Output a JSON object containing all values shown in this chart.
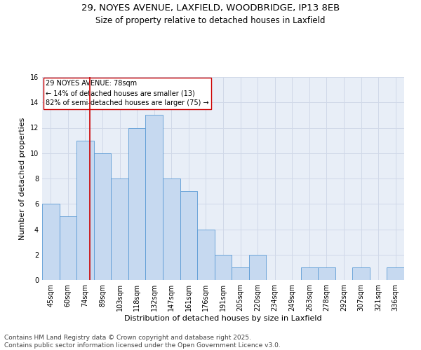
{
  "title1": "29, NOYES AVENUE, LAXFIELD, WOODBRIDGE, IP13 8EB",
  "title2": "Size of property relative to detached houses in Laxfield",
  "xlabel": "Distribution of detached houses by size in Laxfield",
  "ylabel": "Number of detached properties",
  "categories": [
    "45sqm",
    "60sqm",
    "74sqm",
    "89sqm",
    "103sqm",
    "118sqm",
    "132sqm",
    "147sqm",
    "161sqm",
    "176sqm",
    "191sqm",
    "205sqm",
    "220sqm",
    "234sqm",
    "249sqm",
    "263sqm",
    "278sqm",
    "292sqm",
    "307sqm",
    "321sqm",
    "336sqm"
  ],
  "values": [
    6,
    5,
    11,
    10,
    8,
    12,
    13,
    8,
    7,
    4,
    2,
    1,
    2,
    0,
    0,
    1,
    1,
    0,
    1,
    0,
    1
  ],
  "bar_color": "#c6d9f0",
  "bar_edge_color": "#5b9bd5",
  "annotation_text": "29 NOYES AVENUE: 78sqm\n← 14% of detached houses are smaller (13)\n82% of semi-detached houses are larger (75) →",
  "annotation_box_color": "#ffffff",
  "annotation_box_edge": "#cc0000",
  "red_line_color": "#cc0000",
  "red_line_x": 2.27,
  "ylim": [
    0,
    16
  ],
  "yticks": [
    0,
    2,
    4,
    6,
    8,
    10,
    12,
    14,
    16
  ],
  "grid_color": "#d0d8e8",
  "bg_color": "#e8eef7",
  "footer1": "Contains HM Land Registry data © Crown copyright and database right 2025.",
  "footer2": "Contains public sector information licensed under the Open Government Licence v3.0.",
  "title_fontsize": 9.5,
  "subtitle_fontsize": 8.5,
  "axis_label_fontsize": 8,
  "tick_fontsize": 7,
  "annotation_fontsize": 7,
  "footer_fontsize": 6.5
}
